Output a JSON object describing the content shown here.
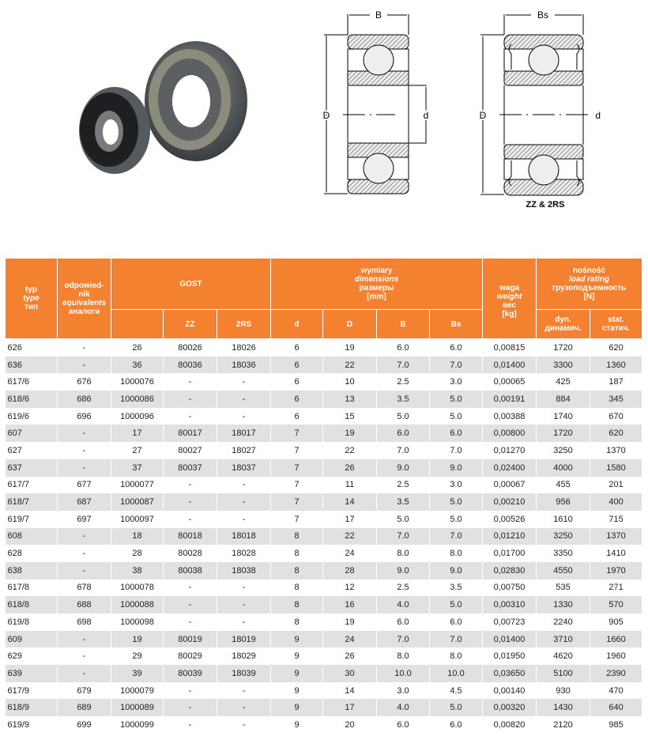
{
  "diagram": {
    "label_B": "B",
    "label_Bs": "Bs",
    "label_D": "D",
    "label_d": "d",
    "caption": "ZZ & 2RS"
  },
  "colors": {
    "header_bg": "#f3812f",
    "stripe": "#e1e1e1"
  },
  "header": {
    "typ": [
      "typ",
      "type",
      "тип"
    ],
    "equiv": [
      "odpowied-",
      "nik",
      "equivalents",
      "аналоги"
    ],
    "gost": "GOST",
    "zz": "ZZ",
    "rs": "2RS",
    "dims": [
      "wymiary",
      "dimensions",
      "размеры",
      "[mm]"
    ],
    "d": "d",
    "D": "D",
    "B": "B",
    "Bs": "Bs",
    "weight": [
      "waga",
      "weight",
      "вес",
      "[kg]"
    ],
    "load": [
      "nośność",
      "load rating",
      "грузоподъемность",
      "[N]"
    ],
    "dyn": [
      "dyn.",
      "динамич."
    ],
    "stat": [
      "stat.",
      "статич."
    ]
  },
  "rows": [
    [
      "626",
      "-",
      "26",
      "80026",
      "18026",
      "6",
      "19",
      "6.0",
      "6.0",
      "0,00815",
      "1720",
      "620"
    ],
    [
      "636",
      "-",
      "36",
      "80036",
      "18036",
      "6",
      "22",
      "7.0",
      "7.0",
      "0,01400",
      "3300",
      "1360"
    ],
    [
      "617/6",
      "676",
      "1000076",
      "-",
      "-",
      "6",
      "10",
      "2.5",
      "3.0",
      "0,00065",
      "425",
      "187"
    ],
    [
      "618/6",
      "686",
      "1000086",
      "-",
      "-",
      "6",
      "13",
      "3.5",
      "5.0",
      "0,00191",
      "884",
      "345"
    ],
    [
      "619/6",
      "696",
      "1000096",
      "-",
      "-",
      "6",
      "15",
      "5.0",
      "5.0",
      "0,00388",
      "1740",
      "670"
    ],
    [
      "607",
      "-",
      "17",
      "80017",
      "18017",
      "7",
      "19",
      "6.0",
      "6.0",
      "0,00800",
      "1720",
      "620"
    ],
    [
      "627",
      "-",
      "27",
      "80027",
      "18027",
      "7",
      "22",
      "7.0",
      "7.0",
      "0,01270",
      "3250",
      "1370"
    ],
    [
      "637",
      "-",
      "37",
      "80037",
      "18037",
      "7",
      "26",
      "9.0",
      "9.0",
      "0,02400",
      "4000",
      "1580"
    ],
    [
      "617/7",
      "677",
      "1000077",
      "-",
      "-",
      "7",
      "11",
      "2.5",
      "3.0",
      "0,00067",
      "455",
      "201"
    ],
    [
      "618/7",
      "687",
      "1000087",
      "-",
      "-",
      "7",
      "14",
      "3.5",
      "5.0",
      "0,00210",
      "956",
      "400"
    ],
    [
      "619/7",
      "697",
      "1000097",
      "-",
      "-",
      "7",
      "17",
      "5.0",
      "5.0",
      "0,00526",
      "1610",
      "715"
    ],
    [
      "608",
      "-",
      "18",
      "80018",
      "18018",
      "8",
      "22",
      "7.0",
      "7.0",
      "0,01210",
      "3250",
      "1370"
    ],
    [
      "628",
      "-",
      "28",
      "80028",
      "18028",
      "8",
      "24",
      "8.0",
      "8.0",
      "0,01700",
      "3350",
      "1410"
    ],
    [
      "638",
      "-",
      "38",
      "80038",
      "18038",
      "8",
      "28",
      "9.0",
      "9.0",
      "0,02830",
      "4550",
      "1970"
    ],
    [
      "617/8",
      "678",
      "1000078",
      "-",
      "-",
      "8",
      "12",
      "2.5",
      "3.5",
      "0,00750",
      "535",
      "271"
    ],
    [
      "618/8",
      "688",
      "1000088",
      "-",
      "-",
      "8",
      "16",
      "4.0",
      "5.0",
      "0,00310",
      "1330",
      "570"
    ],
    [
      "619/8",
      "698",
      "1000098",
      "-",
      "-",
      "8",
      "19",
      "6.0",
      "6.0",
      "0,00723",
      "2240",
      "905"
    ],
    [
      "609",
      "-",
      "19",
      "80019",
      "18019",
      "9",
      "24",
      "7.0",
      "7.0",
      "0,01400",
      "3710",
      "1660"
    ],
    [
      "629",
      "-",
      "29",
      "80029",
      "18029",
      "9",
      "26",
      "8.0",
      "8.0",
      "0,01950",
      "4620",
      "1960"
    ],
    [
      "639",
      "-",
      "39",
      "80039",
      "18039",
      "9",
      "30",
      "10.0",
      "10.0",
      "0,03650",
      "5100",
      "2390"
    ],
    [
      "617/9",
      "679",
      "1000079",
      "-",
      "-",
      "9",
      "14",
      "3.0",
      "4.5",
      "0,00140",
      "930",
      "470"
    ],
    [
      "618/9",
      "689",
      "1000089",
      "-",
      "-",
      "9",
      "17",
      "4.0",
      "5.0",
      "0,00320",
      "1430",
      "640"
    ],
    [
      "619/9",
      "699",
      "1000099",
      "-",
      "-",
      "9",
      "20",
      "6.0",
      "6.0",
      "0,00820",
      "2120",
      "985"
    ]
  ]
}
